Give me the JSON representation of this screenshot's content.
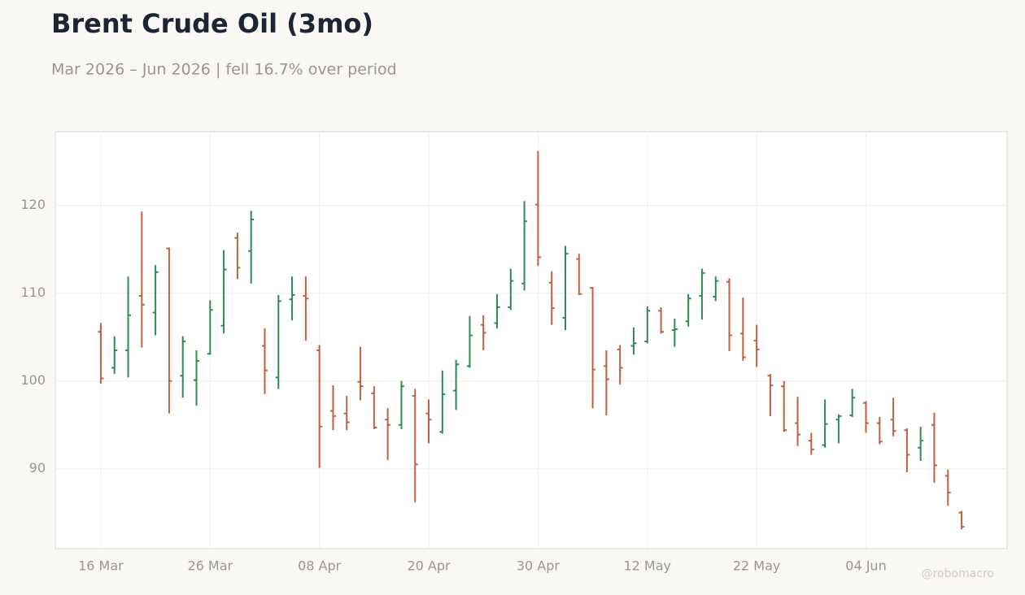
{
  "chart_data": {
    "type": "ohlc",
    "title": "Brent Crude Oil (3mo)",
    "subtitle": "Mar 2026 – Jun 2026 | fell 16.7% over period",
    "watermark": "@robomacro",
    "categories": [
      "16 Mar",
      null,
      null,
      null,
      null,
      null,
      null,
      null,
      "26 Mar",
      null,
      null,
      null,
      null,
      null,
      null,
      null,
      "08 Apr",
      null,
      null,
      null,
      null,
      null,
      null,
      null,
      "20 Apr",
      null,
      null,
      null,
      null,
      null,
      null,
      null,
      "30 Apr",
      null,
      null,
      null,
      null,
      null,
      null,
      null,
      "12 May",
      null,
      null,
      null,
      null,
      null,
      null,
      null,
      "22 May",
      null,
      null,
      null,
      null,
      null,
      null,
      null,
      "04 Jun",
      null,
      null,
      null,
      null,
      null,
      null,
      null
    ],
    "open": [
      105.6,
      101.5,
      103.5,
      109.7,
      107.8,
      115.1,
      100.6,
      100.1,
      103.1,
      106.3,
      116.3,
      114.8,
      104,
      100.4,
      109.3,
      109.7,
      103.5,
      96.6,
      96.3,
      99.9,
      98.6,
      95.6,
      95,
      98.3,
      96.3,
      94.2,
      98.9,
      101.7,
      106.4,
      106.6,
      108.4,
      111.1,
      120.1,
      111.2,
      107.2,
      113.9,
      110.6,
      101.7,
      103.6,
      104,
      104.5,
      108,
      105.8,
      106.8,
      109.7,
      109.6,
      111.3,
      105.4,
      104.6,
      100.6,
      99.4,
      95.2,
      93.2,
      92.7,
      95.6,
      96.1,
      97.5,
      95.2,
      95.6,
      94.4,
      92.4,
      95,
      89.2,
      85
    ],
    "high": [
      106.6,
      105.1,
      111.9,
      119.3,
      113.2,
      115.2,
      105.1,
      103.5,
      109.2,
      114.9,
      116.9,
      119.4,
      106,
      109.8,
      111.9,
      111.9,
      104.1,
      99.5,
      98.3,
      103.9,
      99.4,
      96.9,
      100,
      99.1,
      97.9,
      101.2,
      102.4,
      107.4,
      107.5,
      109.9,
      112.8,
      120.5,
      126.2,
      112.5,
      115.4,
      114.5,
      110.7,
      103.5,
      104.1,
      106.1,
      108.5,
      108.4,
      107.1,
      109.9,
      112.8,
      111.9,
      111.7,
      109.5,
      106.4,
      100.8,
      100,
      98.2,
      94.1,
      97.9,
      96.2,
      99.1,
      97.7,
      95.9,
      98.1,
      94.6,
      94.8,
      96.4,
      89.9,
      85.2
    ],
    "low": [
      99.7,
      100.8,
      100.4,
      103.8,
      105.2,
      96.3,
      98.1,
      97.2,
      103,
      105.4,
      111.6,
      111.1,
      98.5,
      99.1,
      106.9,
      104.6,
      90.1,
      94.4,
      94.4,
      97.8,
      94.5,
      91,
      94.5,
      86.2,
      92.9,
      94,
      96.7,
      101.5,
      103.5,
      106,
      108.1,
      110.3,
      113.1,
      106.4,
      105.8,
      109.8,
      96.9,
      96.1,
      99.6,
      103,
      104.3,
      105.4,
      103.9,
      106.2,
      107,
      109.1,
      103.4,
      102.3,
      101.6,
      96,
      94.2,
      92.6,
      91.6,
      92.4,
      92.9,
      95.9,
      94.1,
      92.8,
      93.7,
      89.6,
      90.9,
      88.4,
      85.8,
      83.1
    ],
    "close": [
      100.3,
      103.5,
      107.5,
      108.7,
      112.4,
      100,
      104.5,
      102.3,
      108.1,
      112.7,
      112.9,
      118.4,
      101.2,
      109.1,
      109.8,
      109.4,
      94.8,
      96,
      95.3,
      99.4,
      94.7,
      95,
      99.4,
      90.5,
      95.6,
      98.5,
      101.9,
      105.2,
      105.5,
      108.4,
      111.4,
      118.2,
      114.1,
      108.3,
      114.5,
      109.9,
      101.3,
      100.2,
      101.5,
      104.3,
      108,
      105.6,
      105.9,
      109.4,
      112.3,
      111.4,
      105.2,
      102.7,
      103.6,
      99.5,
      94.4,
      93.9,
      92.2,
      95.1,
      96,
      98.1,
      95.2,
      93.1,
      94.3,
      91.6,
      93.2,
      90.4,
      87.3,
      83.4
    ],
    "up_color": "#2e8b57",
    "down_color": "#c0623f",
    "ylim": [
      80.9,
      128.4
    ],
    "yticks": [
      90,
      100,
      110,
      120
    ],
    "grid": true
  }
}
